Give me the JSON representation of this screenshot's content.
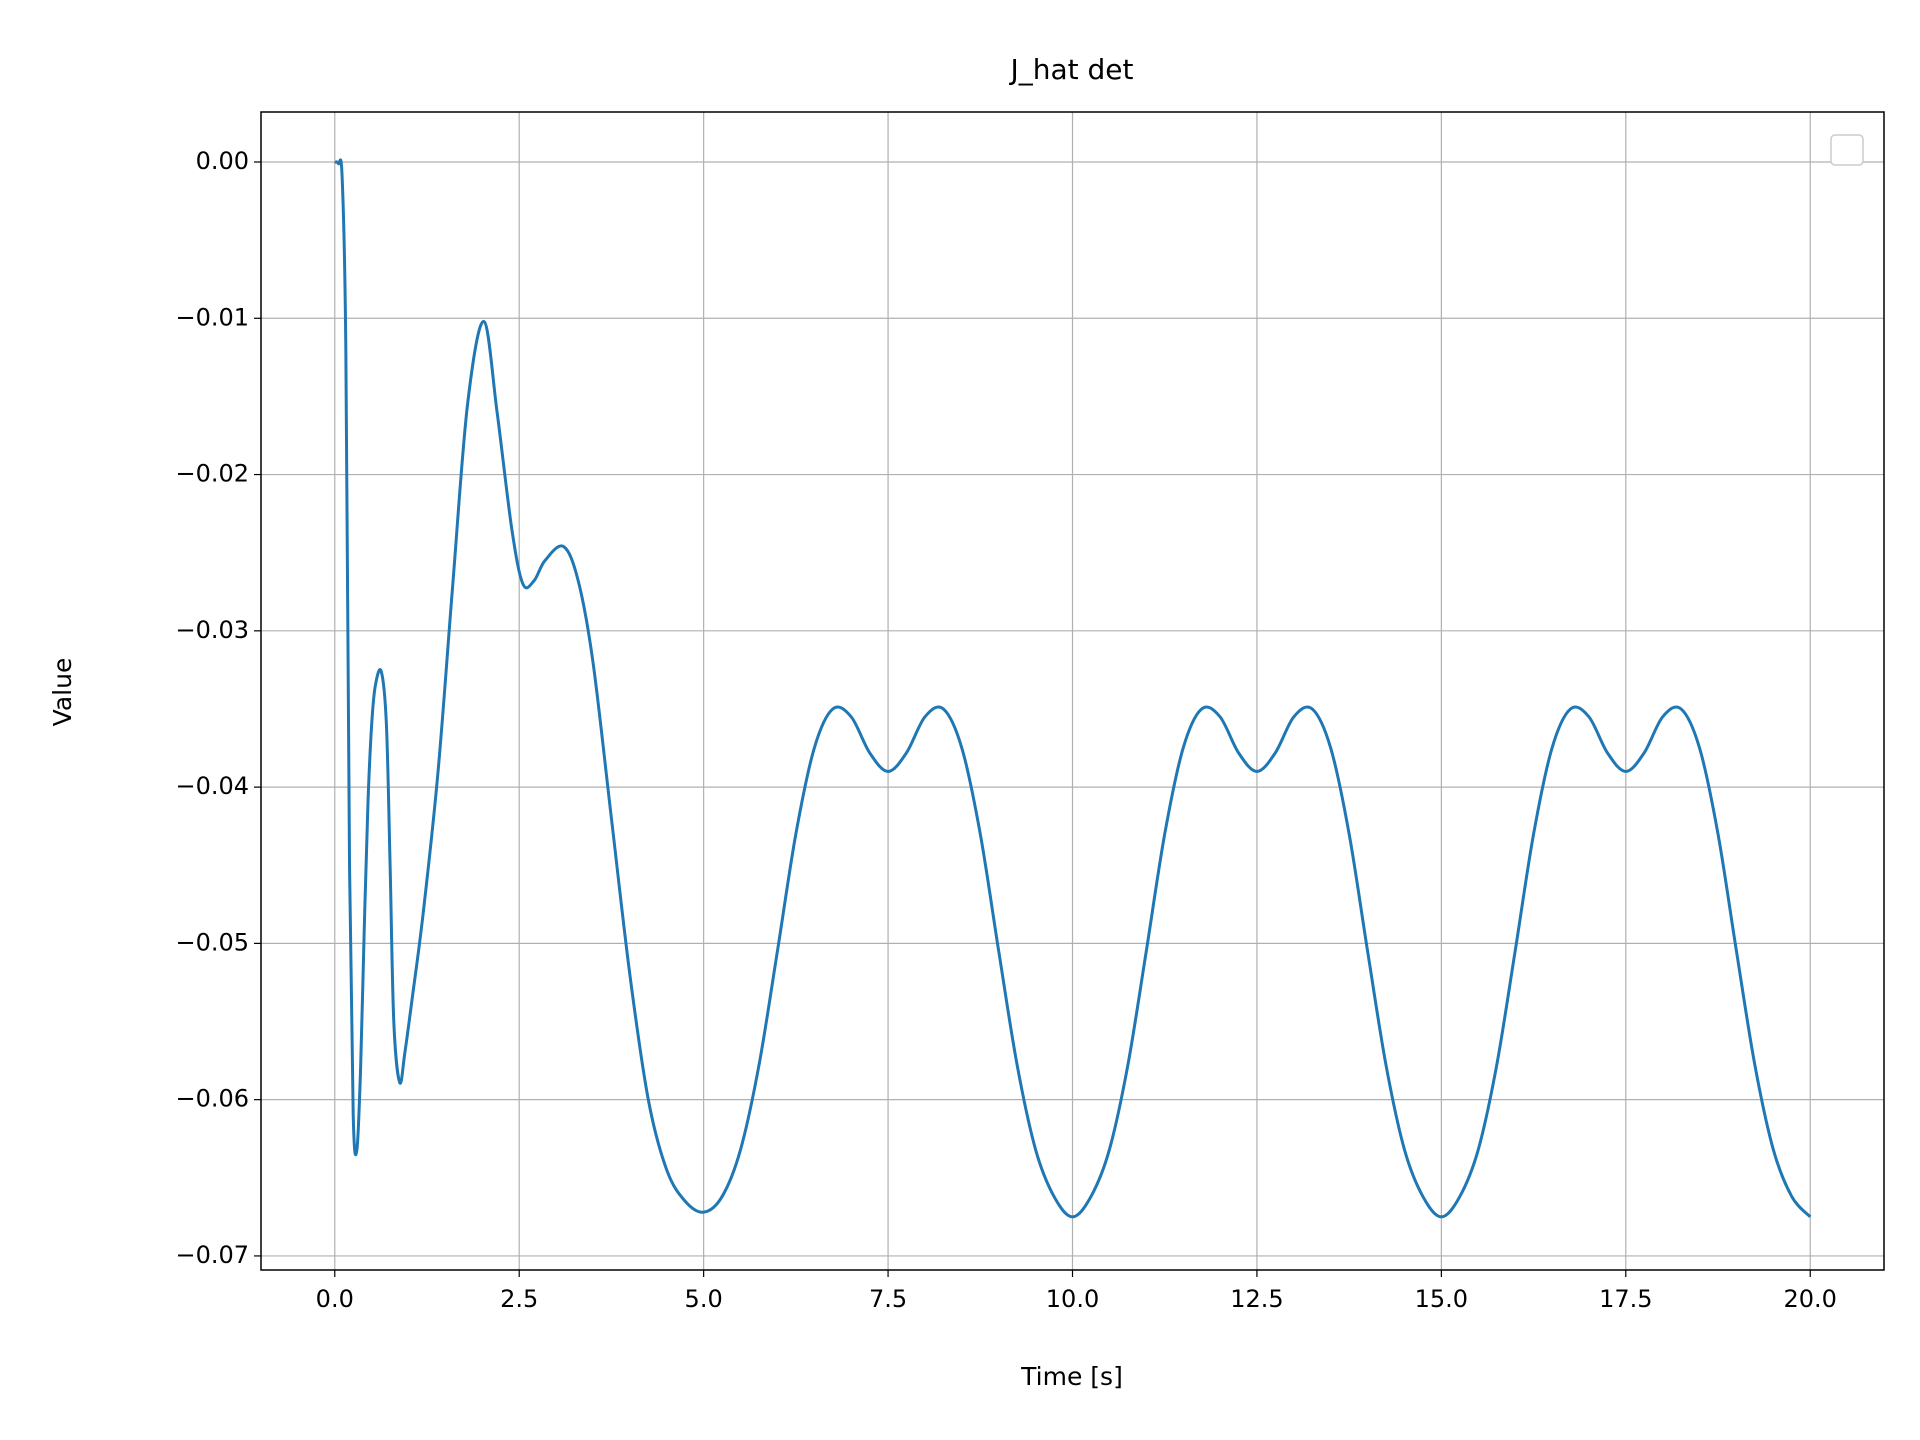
{
  "chart_data": {
    "type": "line",
    "title": "J_hat det",
    "xlabel": "Time [s]",
    "ylabel": "Value",
    "grid": true,
    "xlim": [
      -1,
      21
    ],
    "ylim": [
      -0.0709,
      0.0032
    ],
    "xticks": [
      {
        "value": 0,
        "label": "0.0"
      },
      2.5,
      {
        "value": 5,
        "label": "5.0"
      },
      7.5,
      {
        "value": 10,
        "label": "10.0"
      },
      12.5,
      {
        "value": 15,
        "label": "15.0"
      },
      17.5,
      {
        "value": 20,
        "label": "20.0"
      }
    ],
    "yticks": [
      {
        "value": 0,
        "label": "0.00"
      },
      {
        "value": -0.01,
        "label": "−0.01"
      },
      {
        "value": -0.02,
        "label": "−0.02"
      },
      {
        "value": -0.03,
        "label": "−0.03"
      },
      {
        "value": -0.04,
        "label": "−0.04"
      },
      {
        "value": -0.05,
        "label": "−0.05"
      },
      {
        "value": -0.06,
        "label": "−0.06"
      },
      {
        "value": -0.07,
        "label": "−0.07"
      }
    ],
    "series": [
      {
        "color": "#1f77b4",
        "x": [
          0,
          0.05,
          0.1,
          0.15,
          0.2,
          0.25,
          0.3,
          0.35,
          0.4,
          0.45,
          0.5,
          0.55,
          0.63,
          0.7,
          0.75,
          0.8,
          0.88,
          0.95,
          1.05,
          1.2,
          1.4,
          1.6,
          1.8,
          2.02,
          2.2,
          2.4,
          2.55,
          2.7,
          2.85,
          3.1,
          3.3,
          3.5,
          3.75,
          4.0,
          4.25,
          4.5,
          4.75,
          5.0,
          5.25,
          5.5,
          5.75,
          6.0,
          6.25,
          6.5,
          6.75,
          7.0,
          7.25,
          7.5,
          7.75,
          8.0,
          8.25,
          8.5,
          8.75,
          9.0,
          9.25,
          9.5,
          9.75,
          10.0,
          10.25,
          10.5,
          10.75,
          11.0,
          11.25,
          11.5,
          11.75,
          12.0,
          12.25,
          12.5,
          12.75,
          13.0,
          13.25,
          13.5,
          13.75,
          14.0,
          14.25,
          14.5,
          14.75,
          15.0,
          15.25,
          15.5,
          15.75,
          16.0,
          16.25,
          16.5,
          16.75,
          17.0,
          17.25,
          17.5,
          17.75,
          18.0,
          18.25,
          18.5,
          18.75,
          19.0,
          19.25,
          19.5,
          19.75,
          20.0
        ],
        "values": [
          0,
          -0.0001,
          -0.001,
          -0.012,
          -0.045,
          -0.061,
          -0.0632,
          -0.058,
          -0.049,
          -0.041,
          -0.036,
          -0.0335,
          -0.0326,
          -0.036,
          -0.045,
          -0.055,
          -0.0589,
          -0.057,
          -0.0535,
          -0.048,
          -0.039,
          -0.027,
          -0.0155,
          -0.0102,
          -0.016,
          -0.0235,
          -0.027,
          -0.0268,
          -0.0255,
          -0.0246,
          -0.0268,
          -0.032,
          -0.042,
          -0.052,
          -0.06,
          -0.0645,
          -0.0665,
          -0.0672,
          -0.0662,
          -0.0632,
          -0.0578,
          -0.0505,
          -0.043,
          -0.0375,
          -0.035,
          -0.0355,
          -0.0378,
          -0.039,
          -0.0378,
          -0.0355,
          -0.035,
          -0.0375,
          -0.043,
          -0.0505,
          -0.0578,
          -0.0632,
          -0.0662,
          -0.0675,
          -0.0662,
          -0.0632,
          -0.0578,
          -0.0505,
          -0.043,
          -0.0375,
          -0.035,
          -0.0355,
          -0.0378,
          -0.039,
          -0.0378,
          -0.0355,
          -0.035,
          -0.0375,
          -0.043,
          -0.0505,
          -0.0578,
          -0.0632,
          -0.0662,
          -0.0675,
          -0.0662,
          -0.0632,
          -0.0578,
          -0.0505,
          -0.043,
          -0.0375,
          -0.035,
          -0.0355,
          -0.0378,
          -0.039,
          -0.0378,
          -0.0355,
          -0.035,
          -0.0375,
          -0.043,
          -0.0505,
          -0.0578,
          -0.0632,
          -0.0662,
          -0.0675
        ]
      }
    ]
  }
}
